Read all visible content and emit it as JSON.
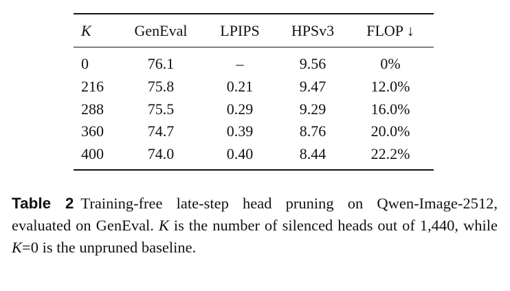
{
  "table": {
    "header": [
      "K",
      "GenEval",
      "LPIPS",
      "HPSv3",
      "FLOP ↓"
    ],
    "header_italic": [
      true,
      false,
      false,
      false,
      false
    ],
    "rows": [
      [
        "0",
        "76.1",
        "–",
        "9.56",
        "0%"
      ],
      [
        "216",
        "75.8",
        "0.21",
        "9.47",
        "12.0%"
      ],
      [
        "288",
        "75.5",
        "0.29",
        "9.29",
        "16.0%"
      ],
      [
        "360",
        "74.7",
        "0.39",
        "8.76",
        "20.0%"
      ],
      [
        "400",
        "74.0",
        "0.40",
        "8.44",
        "22.2%"
      ]
    ]
  },
  "caption": {
    "label": "Table 2",
    "parts": [
      {
        "text": "Training-free late-step head pruning on Qwen-Image-2512, evaluated on GenEval. ",
        "italic": false
      },
      {
        "text": "K",
        "italic": true
      },
      {
        "text": " is the number of silenced heads out of 1,440, while ",
        "italic": false
      },
      {
        "text": "K",
        "italic": true
      },
      {
        "text": "=0 is the unpruned baseline.",
        "italic": false
      }
    ]
  }
}
